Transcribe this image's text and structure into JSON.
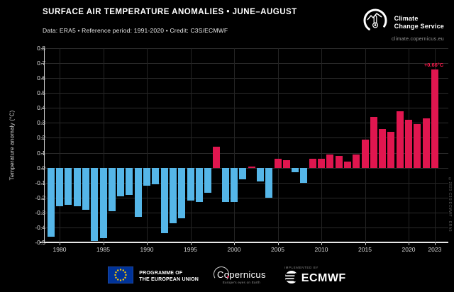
{
  "header": {
    "title": "SURFACE AIR TEMPERATURE ANOMALIES • JUNE–AUGUST",
    "subtitle": "Data: ERA5 • Reference period: 1991-2020 • Credit: C3S/ECMWF"
  },
  "c3s_logo": {
    "line1": "Climate",
    "line2": "Change Service",
    "url": "climate.copernicus.eu"
  },
  "chart_data": {
    "type": "bar",
    "title": "Surface air temperature anomalies, June–August",
    "ylabel": "Temperature anomaly (°C)",
    "ylim": [
      -0.5,
      0.8
    ],
    "grid": true,
    "yticks": [
      0.8,
      0.7,
      0.6,
      0.5,
      0.4,
      0.3,
      0.2,
      0.1,
      0.0,
      -0.1,
      -0.2,
      -0.3,
      -0.4,
      -0.5
    ],
    "xticks": [
      1980,
      1985,
      1990,
      1995,
      2000,
      2005,
      2010,
      2015,
      2020,
      2023
    ],
    "x": [
      1979,
      1980,
      1981,
      1982,
      1983,
      1984,
      1985,
      1986,
      1987,
      1988,
      1989,
      1990,
      1991,
      1992,
      1993,
      1994,
      1995,
      1996,
      1997,
      1998,
      1999,
      2000,
      2001,
      2002,
      2003,
      2004,
      2005,
      2006,
      2007,
      2008,
      2009,
      2010,
      2011,
      2012,
      2013,
      2014,
      2015,
      2016,
      2017,
      2018,
      2019,
      2020,
      2021,
      2022,
      2023
    ],
    "values": [
      -0.46,
      -0.26,
      -0.25,
      -0.26,
      -0.28,
      -0.49,
      -0.47,
      -0.29,
      -0.19,
      -0.18,
      -0.33,
      -0.12,
      -0.11,
      -0.44,
      -0.37,
      -0.34,
      -0.22,
      -0.23,
      -0.17,
      0.14,
      -0.23,
      -0.23,
      -0.08,
      0.01,
      -0.09,
      -0.2,
      0.06,
      0.05,
      -0.03,
      -0.1,
      0.06,
      0.06,
      0.09,
      0.08,
      0.04,
      0.09,
      0.19,
      0.34,
      0.26,
      0.24,
      0.38,
      0.32,
      0.29,
      0.33,
      0.66
    ],
    "annotation": {
      "year": 2023,
      "label": "+0.66°C"
    },
    "colors": {
      "positive": "#e0164f",
      "negative": "#55b6e8",
      "background": "#000000",
      "gridline": "#2b2b2b",
      "axis": "#e8e8e8",
      "annotation": "#ff1a4d"
    }
  },
  "watermark": "©2023 C3S/ECMWF · ERA5",
  "footer": {
    "eu": {
      "line1": "PROGRAMME OF",
      "line2": "THE EUROPEAN UNION"
    },
    "copernicus": {
      "name": "Copernicus",
      "tagline": "Europe's eyes on Earth"
    },
    "ecmwf": {
      "implemented_by": "IMPLEMENTED BY",
      "name": "ECMWF"
    }
  }
}
